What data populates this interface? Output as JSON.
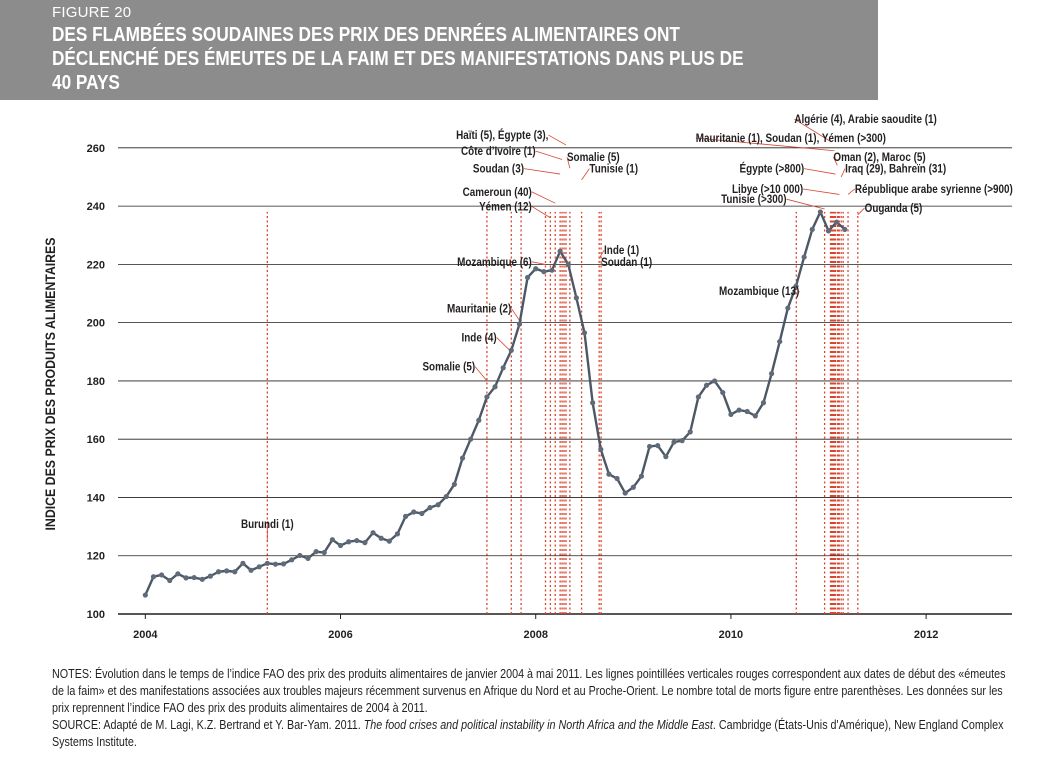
{
  "figure_label": "FIGURE 20",
  "title": "DES FLAMBÉES SOUDAINES DES PRIX DES DENRÉES ALIMENTAIRES ONT DÉCLENCHÉ DES ÉMEUTES DE LA FAIM ET DES MANIFESTATIONS DANS PLUS DE 40 PAYS",
  "notes": {
    "text": "NOTES: Évolution dans le temps de l’indice FAO des prix des produits alimentaires de janvier 2004 à mai 2011. Les lignes pointillées verticales rouges correspondent aux dates de début des «émeutes de la faim» et des manifestations associées aux troubles majeurs récemment survenus en Afrique du Nord et au Proche-Orient. Le nombre total de morts figure entre parenthèses. Les données sur les prix reprennent l’indice FAO des prix des produits alimentaires de 2004 à 2011.",
    "source_prefix": "SOURCE: Adapté de M. Lagi, K.Z. Bertrand et Y. Bar-Yam. 2011. ",
    "source_title": "The food crises and political instability in North Africa and the Middle East",
    "source_suffix": ". Cambridge (États-Unis d'Amérique), New England Complex Systems Institute."
  },
  "colors": {
    "banner": "#8c8c8c",
    "line": "#4d5866",
    "marker": "#5f6b79",
    "event": "#d9452f",
    "grid": "#231f20"
  },
  "chart_data": {
    "type": "line",
    "title": "",
    "ylabel": "INDICE DES PRIX DES PRODUITS ALIMENTAIRES",
    "xlabel": "",
    "xlim": [
      2003.72,
      2012.88
    ],
    "ylim": [
      100,
      262
    ],
    "yticks": [
      100,
      120,
      140,
      160,
      180,
      200,
      220,
      240,
      260
    ],
    "xticks": [
      2004,
      2006,
      2008,
      2010,
      2012
    ],
    "grid": "horizontal",
    "series": [
      {
        "start": 2004.0,
        "step_months": 1,
        "values": [
          106.5,
          112.8,
          113.4,
          111.5,
          113.8,
          112.4,
          112.5,
          111.9,
          113.0,
          114.5,
          114.8,
          114.5,
          117.4,
          115.0,
          116.2,
          117.4,
          117.1,
          117.2,
          118.6,
          120.1,
          119.1,
          121.4,
          121.1,
          125.5,
          123.5,
          124.8,
          125.2,
          124.5,
          127.9,
          126.0,
          125.0,
          127.5,
          133.5,
          135.0,
          134.5,
          136.5,
          137.5,
          140.3,
          144.5,
          153.5,
          160.0,
          166.5,
          174.5,
          178.0,
          184.5,
          190.5,
          199.5,
          215.5,
          218.5,
          217.5,
          218.0,
          224.5,
          220.0,
          208.5,
          196.5,
          172.5,
          156.5,
          148.0,
          146.5,
          141.5,
          143.5,
          147.3,
          157.5,
          157.8,
          154.0,
          159.0,
          159.5,
          162.5,
          174.5,
          178.5,
          180.0,
          176.0,
          168.5,
          170.0,
          169.5,
          168.0,
          172.5,
          182.5,
          193.5,
          205.0,
          212.5,
          222.5,
          232.0,
          238.0,
          231.5,
          234.5,
          232.0
        ]
      }
    ],
    "events": [
      {
        "date": 2005.25,
        "label": "Burundi (1)"
      },
      {
        "date": 2007.5,
        "label": "Somalie (5)"
      },
      {
        "date": 2007.75,
        "label": "Inde (4)"
      },
      {
        "date": 2007.85,
        "label": "Mauritanie (2)"
      },
      {
        "date": 2008.1,
        "label": "Mozambique (6)"
      },
      {
        "date": 2008.15,
        "label": "Yémen (12)"
      },
      {
        "date": 2008.2,
        "label": "Cameroun (40)"
      },
      {
        "date": 2008.25,
        "label": "Soudan (3)"
      },
      {
        "date": 2008.27,
        "label": "Côte d’Ivoire (1)"
      },
      {
        "date": 2008.29,
        "label": "Égypte (3)"
      },
      {
        "date": 2008.31,
        "label": "Haïti (5)"
      },
      {
        "date": 2008.35,
        "label": "Somalie (5)"
      },
      {
        "date": 2008.47,
        "label": "Tunisie (1)"
      },
      {
        "date": 2008.65,
        "label": "Inde (1)"
      },
      {
        "date": 2008.67,
        "label": "Soudan (1)"
      },
      {
        "date": 2010.67,
        "label": "Mozambique (13)"
      },
      {
        "date": 2010.96,
        "label": "Tunisie (>300)"
      },
      {
        "date": 2011.02,
        "label": "Algérie (4)"
      },
      {
        "date": 2011.03,
        "label": "Arabie saoudite (1)"
      },
      {
        "date": 2011.04,
        "label": "Mauritanie (1)"
      },
      {
        "date": 2011.05,
        "label": "Soudan (1)"
      },
      {
        "date": 2011.06,
        "label": "Yémen (>300)"
      },
      {
        "date": 2011.07,
        "label": "Égypte (>800)"
      },
      {
        "date": 2011.09,
        "label": "Oman (2)"
      },
      {
        "date": 2011.1,
        "label": "Maroc (5)"
      },
      {
        "date": 2011.11,
        "label": "Libye (>10 000)"
      },
      {
        "date": 2011.13,
        "label": "Iraq (29)"
      },
      {
        "date": 2011.15,
        "label": "Bahreïn (31)"
      },
      {
        "date": 2011.2,
        "label": "République arabe syrienne (>900)"
      },
      {
        "date": 2011.3,
        "label": "Ouganda (5)"
      }
    ],
    "annotations": [
      {
        "text": "Burundi (1)",
        "x": 2005.25,
        "y": 129.5,
        "anchor": "middle",
        "target_x": 2005.25,
        "target_y": 125
      },
      {
        "text": "Somalie (5)",
        "x": 2007.38,
        "y": 183.5,
        "anchor": "end",
        "target_x": 2007.5,
        "target_y": 180
      },
      {
        "text": "Inde (4)",
        "x": 2007.6,
        "y": 193.5,
        "anchor": "end",
        "target_x": 2007.75,
        "target_y": 190
      },
      {
        "text": "Mauritanie (2)",
        "x": 2007.75,
        "y": 203.5,
        "anchor": "end",
        "target_x": 2007.85,
        "target_y": 200
      },
      {
        "text": "Mozambique (6)",
        "x": 2007.96,
        "y": 219.5,
        "anchor": "end",
        "target_x": 2008.1,
        "target_y": 220
      },
      {
        "text": "Yémen (12)",
        "x": 2007.96,
        "y": 238.5,
        "anchor": "end",
        "target_x": 2008.15,
        "target_y": 236
      },
      {
        "text": "Cameroun (40)",
        "x": 2007.96,
        "y": 243.5,
        "anchor": "end",
        "target_x": 2008.2,
        "target_y": 241
      },
      {
        "text": "Soudan (3)",
        "x": 2007.88,
        "y": 251.5,
        "anchor": "end",
        "target_x": 2008.25,
        "target_y": 251
      },
      {
        "text": "Côte d’Ivoire (1)",
        "x": 2008.0,
        "y": 257.5,
        "anchor": "end",
        "target_x": 2008.27,
        "target_y": 256
      },
      {
        "text": "Haïti (5), Égypte (3),",
        "x": 2008.13,
        "y": 263.0,
        "anchor": "end",
        "target_x": 2008.31,
        "target_y": 261
      },
      {
        "text": "Somalie (5)",
        "x": 2008.32,
        "y": 255.5,
        "anchor": "start",
        "target_x": 2008.35,
        "target_y": 253
      },
      {
        "text": "Tunisie (1)",
        "x": 2008.55,
        "y": 251.5,
        "anchor": "start",
        "target_x": 2008.47,
        "target_y": 249
      },
      {
        "text": "Inde (1)",
        "x": 2008.7,
        "y": 223.5,
        "anchor": "start",
        "target_x": 2008.65,
        "target_y": 222
      },
      {
        "text": "Soudan (1)",
        "x": 2008.67,
        "y": 219.5,
        "anchor": "start",
        "target_x": 2008.67,
        "target_y": 220
      },
      {
        "text": "Mozambique (13)",
        "x": 2010.7,
        "y": 209.5,
        "anchor": "end",
        "target_x": 2010.67,
        "target_y": 208
      },
      {
        "text": "Tunisie (>300)",
        "x": 2010.57,
        "y": 241.0,
        "anchor": "end",
        "target_x": 2010.96,
        "target_y": 239
      },
      {
        "text": "Libye (>10 000)",
        "x": 2010.74,
        "y": 244.5,
        "anchor": "end",
        "target_x": 2011.11,
        "target_y": 244
      },
      {
        "text": "Égypte (>800)",
        "x": 2010.75,
        "y": 251.5,
        "anchor": "end",
        "target_x": 2011.07,
        "target_y": 251
      },
      {
        "text": "Algérie (4), Arabie saoudite (1)",
        "x": 2010.65,
        "y": 268.5,
        "anchor": "start",
        "target_x": 2011.03,
        "target_y": 262
      },
      {
        "text": "Mauritanie (1), Soudan (1), Yémen (>300)",
        "x": 2009.64,
        "y": 262.0,
        "anchor": "start",
        "target_x": 2011.06,
        "target_y": 259
      },
      {
        "text": "Oman (2), Maroc (5)",
        "x": 2011.05,
        "y": 255.5,
        "anchor": "start",
        "target_x": 2011.09,
        "target_y": 254
      },
      {
        "text": "Iraq (29), Bahreïn (31)",
        "x": 2011.17,
        "y": 251.5,
        "anchor": "start",
        "target_x": 2011.13,
        "target_y": 250
      },
      {
        "text": "République arabe syrienne (>900)",
        "x": 2011.27,
        "y": 244.5,
        "anchor": "start",
        "target_x": 2011.2,
        "target_y": 244
      },
      {
        "text": "Ouganda (5)",
        "x": 2011.37,
        "y": 238.0,
        "anchor": "start",
        "target_x": 2011.3,
        "target_y": 237
      }
    ]
  }
}
